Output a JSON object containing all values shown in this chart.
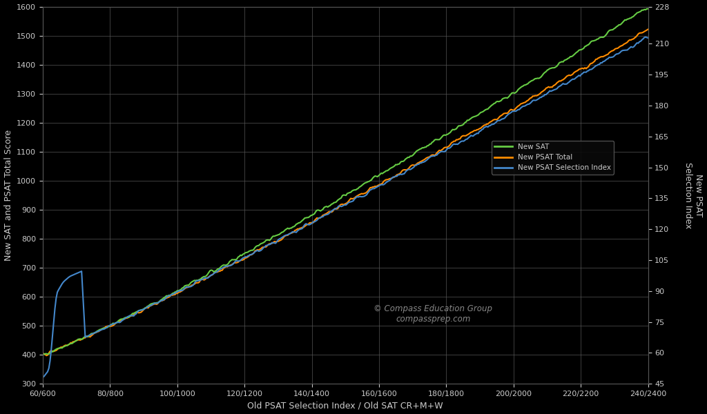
{
  "background_color": "#000000",
  "grid_color": "#555555",
  "text_color": "#cccccc",
  "xlabel": "Old PSAT Selection Index / Old SAT CR+M+W",
  "ylabel_left": "New SAT and PSAT Total Score",
  "ylabel_right": "New PSAT\nSelection Index",
  "xlim": [
    60,
    240
  ],
  "ylim_left": [
    300,
    1600
  ],
  "ylim_right": [
    45,
    228
  ],
  "xtick_labels": [
    "60/600",
    "80/800",
    "100/1000",
    "120/1200",
    "140/1400",
    "160/1600",
    "180/1800",
    "200/2000",
    "220/2200",
    "240/2400"
  ],
  "xtick_vals": [
    60,
    80,
    100,
    120,
    140,
    160,
    180,
    200,
    220,
    240
  ],
  "ytick_left": [
    300,
    400,
    500,
    600,
    700,
    800,
    900,
    1000,
    1100,
    1200,
    1300,
    1400,
    1500,
    1600
  ],
  "ytick_right": [
    45,
    60,
    75,
    90,
    105,
    120,
    135,
    150,
    165,
    180,
    195,
    210,
    228
  ],
  "line_green_label": "New SAT",
  "line_orange_label": "New PSAT Total",
  "line_blue_label": "New PSAT Selection Index",
  "line_green_color": "#66cc44",
  "line_orange_color": "#ff8c00",
  "line_blue_color": "#4488cc",
  "watermark_line1": "© Compass Education Group",
  "watermark_line2": "compassprep.com"
}
